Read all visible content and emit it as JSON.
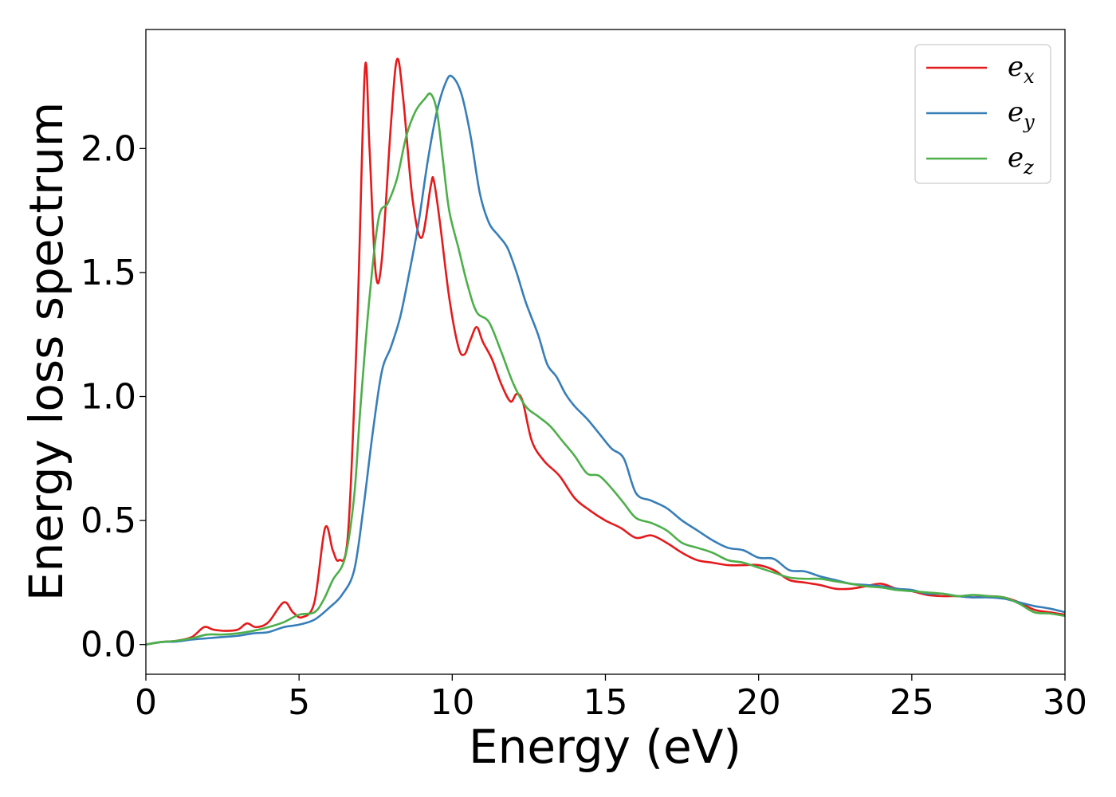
{
  "chart_data": {
    "type": "line",
    "title": "",
    "xlabel": "Energy (eV)",
    "ylabel": "Energy loss spectrum",
    "xlim": [
      0,
      30
    ],
    "ylim": [
      -0.12,
      2.48
    ],
    "xticks": [
      0,
      5,
      10,
      15,
      20,
      25,
      30
    ],
    "xtick_labels": [
      "0",
      "5",
      "10",
      "15",
      "20",
      "25",
      "30"
    ],
    "yticks": [
      0.0,
      0.5,
      1.0,
      1.5,
      2.0
    ],
    "ytick_labels": [
      "0.0",
      "0.5",
      "1.0",
      "1.5",
      "2.0"
    ],
    "grid": false,
    "legend_position": "top-right",
    "series": [
      {
        "name": "e_x",
        "legend_base": "e",
        "legend_sub": "x",
        "color": "#e41a1c",
        "points": [
          [
            0,
            0.0
          ],
          [
            0.5,
            0.01
          ],
          [
            1.0,
            0.015
          ],
          [
            1.5,
            0.03
          ],
          [
            1.9,
            0.07
          ],
          [
            2.2,
            0.06
          ],
          [
            2.6,
            0.055
          ],
          [
            3.0,
            0.06
          ],
          [
            3.3,
            0.085
          ],
          [
            3.6,
            0.07
          ],
          [
            4.0,
            0.09
          ],
          [
            4.5,
            0.17
          ],
          [
            4.8,
            0.13
          ],
          [
            5.1,
            0.11
          ],
          [
            5.5,
            0.17
          ],
          [
            5.85,
            0.47
          ],
          [
            6.1,
            0.38
          ],
          [
            6.3,
            0.34
          ],
          [
            6.6,
            0.45
          ],
          [
            6.9,
            1.3
          ],
          [
            7.15,
            2.32
          ],
          [
            7.3,
            2.0
          ],
          [
            7.5,
            1.5
          ],
          [
            7.7,
            1.55
          ],
          [
            8.0,
            2.1
          ],
          [
            8.2,
            2.36
          ],
          [
            8.4,
            2.2
          ],
          [
            8.7,
            1.8
          ],
          [
            9.0,
            1.64
          ],
          [
            9.3,
            1.85
          ],
          [
            9.4,
            1.87
          ],
          [
            9.6,
            1.7
          ],
          [
            9.9,
            1.4
          ],
          [
            10.2,
            1.2
          ],
          [
            10.4,
            1.17
          ],
          [
            10.6,
            1.23
          ],
          [
            10.8,
            1.28
          ],
          [
            11.0,
            1.22
          ],
          [
            11.3,
            1.15
          ],
          [
            11.6,
            1.05
          ],
          [
            11.9,
            0.98
          ],
          [
            12.1,
            1.01
          ],
          [
            12.3,
            0.98
          ],
          [
            12.6,
            0.82
          ],
          [
            13.0,
            0.74
          ],
          [
            13.5,
            0.68
          ],
          [
            14.0,
            0.59
          ],
          [
            14.5,
            0.54
          ],
          [
            15.0,
            0.5
          ],
          [
            15.5,
            0.47
          ],
          [
            16.0,
            0.43
          ],
          [
            16.5,
            0.44
          ],
          [
            17.0,
            0.41
          ],
          [
            17.5,
            0.37
          ],
          [
            18.0,
            0.34
          ],
          [
            18.5,
            0.33
          ],
          [
            19.0,
            0.32
          ],
          [
            19.5,
            0.32
          ],
          [
            20.0,
            0.32
          ],
          [
            20.5,
            0.3
          ],
          [
            21.0,
            0.26
          ],
          [
            21.5,
            0.25
          ],
          [
            22.0,
            0.24
          ],
          [
            22.5,
            0.225
          ],
          [
            23.0,
            0.225
          ],
          [
            23.5,
            0.235
          ],
          [
            24.0,
            0.245
          ],
          [
            24.5,
            0.225
          ],
          [
            25.0,
            0.215
          ],
          [
            25.5,
            0.2
          ],
          [
            26.0,
            0.195
          ],
          [
            26.5,
            0.195
          ],
          [
            27.0,
            0.19
          ],
          [
            27.5,
            0.195
          ],
          [
            28.0,
            0.19
          ],
          [
            28.5,
            0.17
          ],
          [
            29.0,
            0.14
          ],
          [
            29.5,
            0.13
          ],
          [
            30.0,
            0.12
          ]
        ]
      },
      {
        "name": "e_y",
        "legend_base": "e",
        "legend_sub": "y",
        "color": "#377eb8",
        "points": [
          [
            0,
            0.0
          ],
          [
            0.5,
            0.01
          ],
          [
            1.0,
            0.012
          ],
          [
            1.5,
            0.02
          ],
          [
            2.0,
            0.025
          ],
          [
            2.5,
            0.03
          ],
          [
            3.0,
            0.035
          ],
          [
            3.5,
            0.045
          ],
          [
            4.0,
            0.05
          ],
          [
            4.5,
            0.07
          ],
          [
            5.0,
            0.08
          ],
          [
            5.5,
            0.1
          ],
          [
            6.0,
            0.15
          ],
          [
            6.4,
            0.2
          ],
          [
            6.8,
            0.3
          ],
          [
            7.1,
            0.55
          ],
          [
            7.4,
            0.85
          ],
          [
            7.7,
            1.1
          ],
          [
            8.0,
            1.2
          ],
          [
            8.3,
            1.32
          ],
          [
            8.6,
            1.5
          ],
          [
            8.9,
            1.7
          ],
          [
            9.2,
            1.95
          ],
          [
            9.5,
            2.15
          ],
          [
            9.8,
            2.27
          ],
          [
            10.0,
            2.29
          ],
          [
            10.3,
            2.22
          ],
          [
            10.6,
            2.05
          ],
          [
            10.9,
            1.82
          ],
          [
            11.2,
            1.7
          ],
          [
            11.5,
            1.65
          ],
          [
            11.8,
            1.6
          ],
          [
            12.1,
            1.5
          ],
          [
            12.4,
            1.38
          ],
          [
            12.8,
            1.25
          ],
          [
            13.1,
            1.13
          ],
          [
            13.4,
            1.08
          ],
          [
            13.7,
            1.01
          ],
          [
            14.0,
            0.96
          ],
          [
            14.4,
            0.91
          ],
          [
            14.8,
            0.85
          ],
          [
            15.2,
            0.79
          ],
          [
            15.6,
            0.75
          ],
          [
            16.0,
            0.61
          ],
          [
            16.5,
            0.58
          ],
          [
            17.0,
            0.55
          ],
          [
            17.5,
            0.5
          ],
          [
            18.0,
            0.46
          ],
          [
            18.5,
            0.42
          ],
          [
            19.0,
            0.39
          ],
          [
            19.5,
            0.38
          ],
          [
            20.0,
            0.35
          ],
          [
            20.5,
            0.345
          ],
          [
            21.0,
            0.3
          ],
          [
            21.5,
            0.295
          ],
          [
            22.0,
            0.275
          ],
          [
            22.5,
            0.26
          ],
          [
            23.0,
            0.245
          ],
          [
            23.5,
            0.24
          ],
          [
            24.0,
            0.235
          ],
          [
            24.5,
            0.225
          ],
          [
            25.0,
            0.22
          ],
          [
            25.5,
            0.205
          ],
          [
            26.0,
            0.205
          ],
          [
            26.5,
            0.195
          ],
          [
            27.0,
            0.19
          ],
          [
            27.5,
            0.19
          ],
          [
            28.0,
            0.185
          ],
          [
            28.5,
            0.17
          ],
          [
            29.0,
            0.155
          ],
          [
            29.5,
            0.145
          ],
          [
            30.0,
            0.13
          ]
        ]
      },
      {
        "name": "e_z",
        "legend_base": "e",
        "legend_sub": "z",
        "color": "#4daf4a",
        "points": [
          [
            0,
            0.0
          ],
          [
            0.5,
            0.01
          ],
          [
            1.0,
            0.015
          ],
          [
            1.5,
            0.025
          ],
          [
            2.0,
            0.04
          ],
          [
            2.5,
            0.04
          ],
          [
            3.0,
            0.045
          ],
          [
            3.5,
            0.055
          ],
          [
            4.0,
            0.07
          ],
          [
            4.5,
            0.09
          ],
          [
            5.0,
            0.12
          ],
          [
            5.5,
            0.13
          ],
          [
            5.8,
            0.18
          ],
          [
            6.1,
            0.26
          ],
          [
            6.5,
            0.35
          ],
          [
            6.8,
            0.6
          ],
          [
            7.0,
            0.95
          ],
          [
            7.3,
            1.4
          ],
          [
            7.6,
            1.72
          ],
          [
            7.9,
            1.78
          ],
          [
            8.2,
            1.88
          ],
          [
            8.5,
            2.05
          ],
          [
            8.8,
            2.15
          ],
          [
            9.1,
            2.2
          ],
          [
            9.3,
            2.22
          ],
          [
            9.5,
            2.15
          ],
          [
            9.7,
            1.95
          ],
          [
            9.9,
            1.75
          ],
          [
            10.2,
            1.6
          ],
          [
            10.5,
            1.45
          ],
          [
            10.8,
            1.34
          ],
          [
            11.2,
            1.3
          ],
          [
            11.6,
            1.18
          ],
          [
            12.0,
            1.05
          ],
          [
            12.4,
            0.96
          ],
          [
            12.8,
            0.92
          ],
          [
            13.2,
            0.88
          ],
          [
            13.6,
            0.82
          ],
          [
            14.0,
            0.76
          ],
          [
            14.4,
            0.69
          ],
          [
            14.8,
            0.68
          ],
          [
            15.2,
            0.63
          ],
          [
            15.6,
            0.57
          ],
          [
            16.0,
            0.51
          ],
          [
            16.5,
            0.49
          ],
          [
            17.0,
            0.46
          ],
          [
            17.5,
            0.41
          ],
          [
            18.0,
            0.39
          ],
          [
            18.5,
            0.37
          ],
          [
            19.0,
            0.34
          ],
          [
            19.5,
            0.33
          ],
          [
            20.0,
            0.31
          ],
          [
            20.5,
            0.29
          ],
          [
            21.0,
            0.27
          ],
          [
            21.5,
            0.265
          ],
          [
            22.0,
            0.265
          ],
          [
            22.5,
            0.255
          ],
          [
            23.0,
            0.245
          ],
          [
            23.5,
            0.235
          ],
          [
            24.0,
            0.23
          ],
          [
            24.5,
            0.22
          ],
          [
            25.0,
            0.215
          ],
          [
            25.5,
            0.21
          ],
          [
            26.0,
            0.205
          ],
          [
            26.5,
            0.195
          ],
          [
            27.0,
            0.2
          ],
          [
            27.5,
            0.195
          ],
          [
            28.0,
            0.19
          ],
          [
            28.5,
            0.165
          ],
          [
            29.0,
            0.13
          ],
          [
            29.5,
            0.125
          ],
          [
            30.0,
            0.115
          ]
        ]
      }
    ]
  }
}
